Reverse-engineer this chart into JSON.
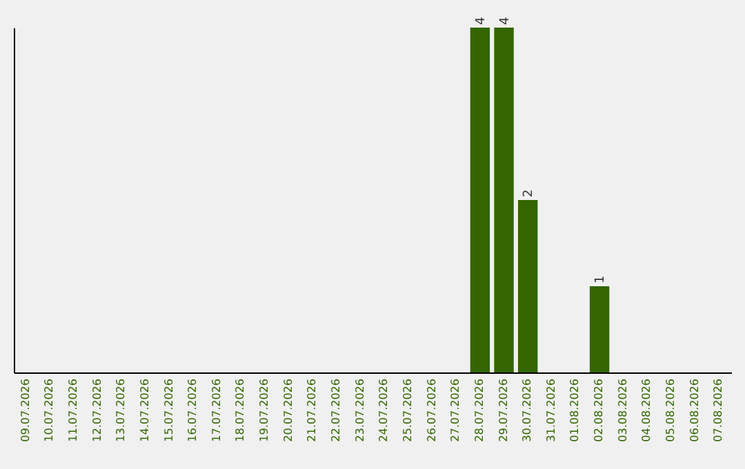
{
  "chart_data": {
    "type": "bar",
    "categories": [
      "09.07.2026",
      "10.07.2026",
      "11.07.2026",
      "12.07.2026",
      "13.07.2026",
      "14.07.2026",
      "15.07.2026",
      "16.07.2026",
      "17.07.2026",
      "18.07.2026",
      "19.07.2026",
      "20.07.2026",
      "21.07.2026",
      "22.07.2026",
      "23.07.2026",
      "24.07.2026",
      "25.07.2026",
      "26.07.2026",
      "27.07.2026",
      "28.07.2026",
      "29.07.2026",
      "30.07.2026",
      "31.07.2026",
      "01.08.2026",
      "02.08.2026",
      "03.08.2026",
      "04.08.2026",
      "05.08.2026",
      "06.08.2026",
      "07.08.2026"
    ],
    "values": [
      null,
      null,
      null,
      null,
      null,
      null,
      null,
      null,
      null,
      null,
      null,
      null,
      null,
      null,
      null,
      null,
      null,
      null,
      null,
      4,
      4,
      2,
      null,
      null,
      1,
      null,
      null,
      null,
      null,
      null
    ],
    "value_labels": [
      null,
      null,
      null,
      null,
      null,
      null,
      null,
      null,
      null,
      null,
      null,
      null,
      null,
      null,
      null,
      null,
      null,
      null,
      null,
      "4",
      "4",
      "2",
      null,
      null,
      "1",
      null,
      null,
      null,
      null,
      null
    ],
    "color": "#336600",
    "tick_labels": "x",
    "grid": false
  }
}
